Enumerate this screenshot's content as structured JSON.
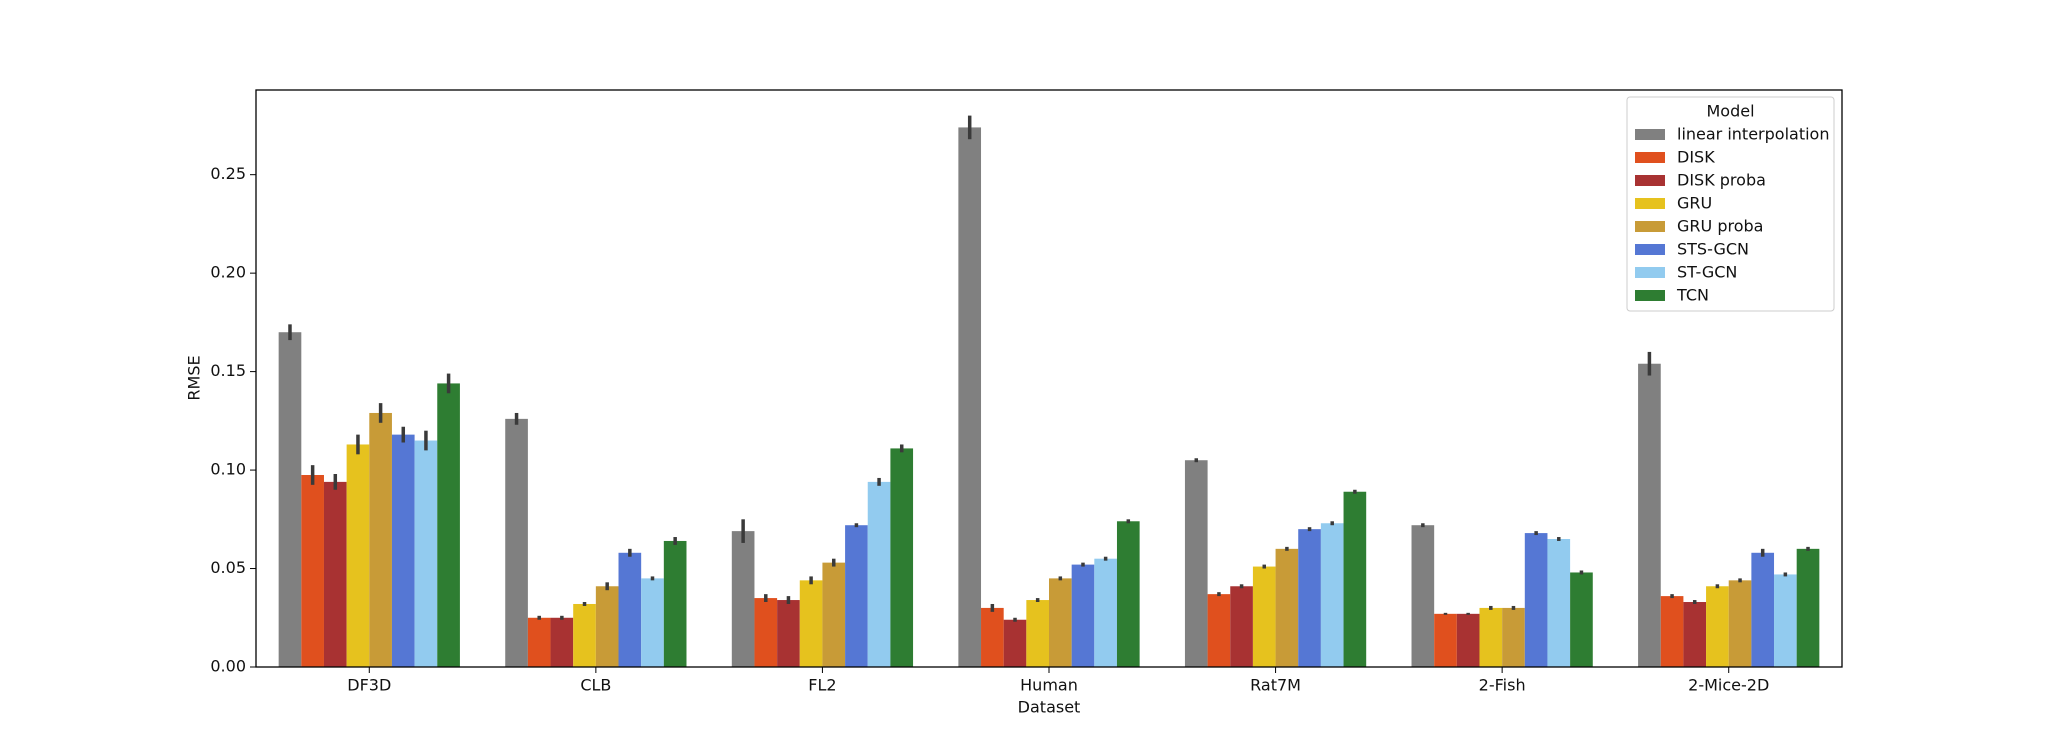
{
  "chart_data": {
    "type": "bar",
    "x_label": "Dataset",
    "y_label": "RMSE",
    "legend_title": "Model",
    "legend": "upper right",
    "categories": [
      "DF3D",
      "CLB",
      "FL2",
      "Human",
      "Rat7M",
      "2-Fish",
      "2-Mice-2D"
    ],
    "series": [
      {
        "name": "linear interpolation",
        "color": "#808080",
        "values": [
          0.17,
          0.126,
          0.069,
          0.274,
          0.105,
          0.072,
          0.154
        ],
        "errors": [
          0.004,
          0.003,
          0.006,
          0.006,
          0.001,
          0.001,
          0.006
        ]
      },
      {
        "name": "DISK",
        "color": "#e0501e",
        "values": [
          0.0975,
          0.025,
          0.035,
          0.03,
          0.037,
          0.027,
          0.036
        ],
        "errors": [
          0.005,
          0.001,
          0.002,
          0.002,
          0.001,
          0.0005,
          0.001
        ]
      },
      {
        "name": "DISK proba",
        "color": "#a83232",
        "values": [
          0.094,
          0.025,
          0.034,
          0.024,
          0.041,
          0.027,
          0.033
        ],
        "errors": [
          0.004,
          0.001,
          0.002,
          0.001,
          0.001,
          0.0005,
          0.001
        ]
      },
      {
        "name": "GRU",
        "color": "#e6c21e",
        "values": [
          0.113,
          0.032,
          0.044,
          0.034,
          0.051,
          0.03,
          0.041
        ],
        "errors": [
          0.005,
          0.001,
          0.002,
          0.001,
          0.001,
          0.001,
          0.001
        ]
      },
      {
        "name": "GRU proba",
        "color": "#c89b37",
        "values": [
          0.129,
          0.041,
          0.053,
          0.045,
          0.06,
          0.03,
          0.044
        ],
        "errors": [
          0.005,
          0.002,
          0.002,
          0.001,
          0.001,
          0.001,
          0.001
        ]
      },
      {
        "name": "STS-GCN",
        "color": "#5577d4",
        "values": [
          0.118,
          0.058,
          0.072,
          0.052,
          0.07,
          0.068,
          0.058
        ],
        "errors": [
          0.004,
          0.002,
          0.001,
          0.001,
          0.001,
          0.001,
          0.002
        ]
      },
      {
        "name": "ST-GCN",
        "color": "#92cbef",
        "values": [
          0.115,
          0.045,
          0.094,
          0.055,
          0.073,
          0.065,
          0.047
        ],
        "errors": [
          0.005,
          0.001,
          0.002,
          0.001,
          0.001,
          0.001,
          0.001
        ]
      },
      {
        "name": "TCN",
        "color": "#2e7d32",
        "values": [
          0.144,
          0.064,
          0.111,
          0.074,
          0.089,
          0.048,
          0.06
        ],
        "errors": [
          0.005,
          0.002,
          0.002,
          0.001,
          0.001,
          0.001,
          0.001
        ]
      }
    ],
    "ylim": [
      0,
      0.293
    ],
    "yticks": [
      {
        "value": 0,
        "label": "0.00"
      },
      0.05,
      {
        "value": 0.1,
        "label": "0.10"
      },
      0.15,
      {
        "value": 0.2,
        "label": "0.20"
      },
      0.25
    ],
    "grid": false
  }
}
